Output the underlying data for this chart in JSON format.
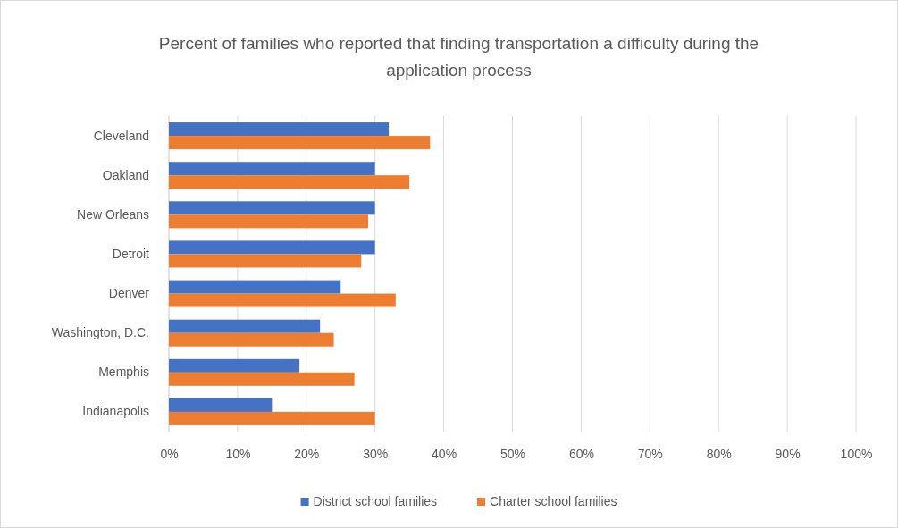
{
  "chart_data": {
    "type": "bar",
    "orientation": "horizontal",
    "title": "Percent of families who reported that finding transportation a difficulty during the application process",
    "categories": [
      "Cleveland",
      "Oakland",
      "New Orleans",
      "Detroit",
      "Denver",
      "Washington, D.C.",
      "Memphis",
      "Indianapolis"
    ],
    "series": [
      {
        "name": "District school families",
        "color": "#4472c4",
        "values": [
          32,
          30,
          30,
          30,
          25,
          22,
          19,
          15
        ]
      },
      {
        "name": "Charter school families",
        "color": "#ed7d31",
        "values": [
          38,
          35,
          29,
          28,
          33,
          24,
          27,
          30
        ]
      }
    ],
    "xlim": [
      0,
      100
    ],
    "xticks": [
      {
        "value": 0,
        "label": "0%"
      },
      {
        "value": 10,
        "label": "10%"
      },
      {
        "value": 20,
        "label": "20%"
      },
      {
        "value": 30,
        "label": "30%"
      },
      {
        "value": 40,
        "label": "40%"
      },
      {
        "value": 50,
        "label": "50%"
      },
      {
        "value": 60,
        "label": "60%"
      },
      {
        "value": 70,
        "label": "70%"
      },
      {
        "value": 80,
        "label": "80%"
      },
      {
        "value": 90,
        "label": "90%"
      },
      {
        "value": 100,
        "label": "100%"
      }
    ],
    "grid": "x",
    "legend": "bottom"
  }
}
